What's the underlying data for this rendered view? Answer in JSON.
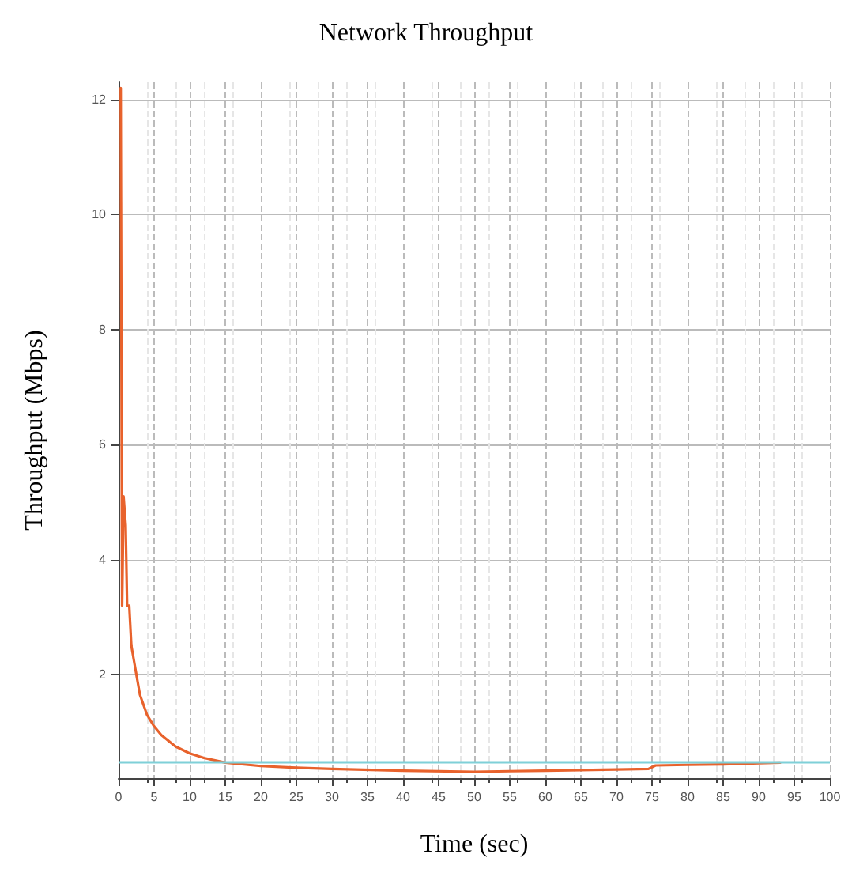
{
  "chart_data": {
    "type": "line",
    "title": "Network Throughput",
    "xlabel": "Time (sec)",
    "ylabel": "Throughput (Mbps)",
    "xlim": [
      0,
      100
    ],
    "xticks": [
      0,
      5,
      10,
      15,
      20,
      25,
      30,
      35,
      40,
      45,
      50,
      55,
      60,
      65,
      70,
      75,
      80,
      85,
      90,
      95,
      100
    ],
    "ylim": [
      0.2,
      12.3
    ],
    "yticks": [
      2,
      4,
      6,
      8,
      10,
      12
    ],
    "series": [
      {
        "color": "#e8622c",
        "x": [
          0.3,
          0.5,
          0.7,
          1.0,
          1.2,
          1.5,
          1.8,
          2.5,
          3,
          4,
          5,
          6,
          7,
          8,
          10,
          12,
          15,
          20,
          25,
          30,
          40,
          50,
          55,
          60,
          65,
          70,
          74.5,
          75.5,
          80,
          85,
          90,
          93
        ],
        "values": [
          12.2,
          3.2,
          5.1,
          4.6,
          3.2,
          3.2,
          2.5,
          2.0,
          1.65,
          1.3,
          1.1,
          0.95,
          0.85,
          0.75,
          0.63,
          0.55,
          0.47,
          0.41,
          0.38,
          0.36,
          0.33,
          0.31,
          0.32,
          0.33,
          0.34,
          0.35,
          0.36,
          0.42,
          0.43,
          0.44,
          0.46,
          0.47
        ]
      }
    ],
    "ref_lines": [
      {
        "axis": "y",
        "value": 0.47,
        "color": "#7fd0d8"
      }
    ],
    "grid": true,
    "marker": "none",
    "line_style": "solid"
  }
}
